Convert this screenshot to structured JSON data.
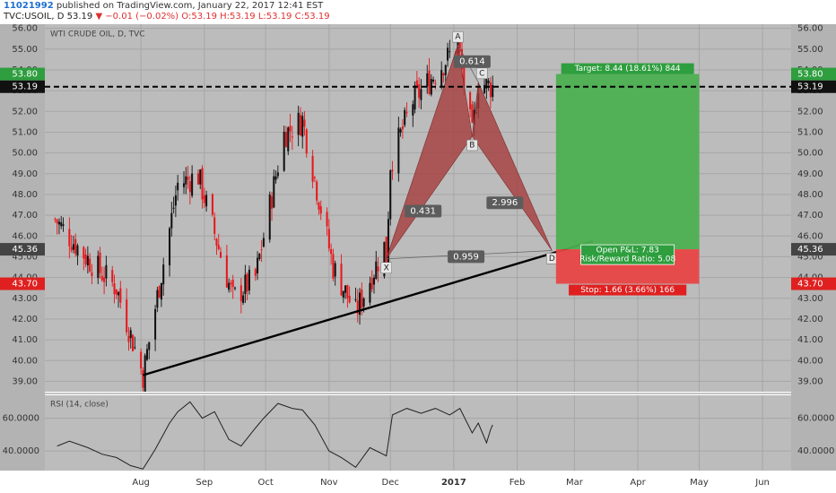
{
  "header": {
    "user": "11021992",
    "published_text": "published on TradingView.com, January 22, 2017 12:41 EST",
    "symbol": "TVC:USOIL, D",
    "price": "53.19",
    "change": "▼ −0.01 (−0.02%)",
    "ohlc": "O:53.19 H:53.19 L:53.19 C:53.19"
  },
  "colors": {
    "pane_bg": "#bcbcbc",
    "up_candle": "#111111",
    "down_candle": "#e8171b",
    "pattern_fill": "#a63a3a",
    "profit_zone": "#4caf50",
    "loss_zone": "#e84545",
    "trendline": "#000000"
  },
  "chart_data": [
    {
      "type": "candlestick",
      "instrument_title": "WTI CRUDE OIL, D, TVC",
      "y_ticks": [
        39,
        40,
        41,
        42,
        43,
        44,
        45,
        46,
        47,
        48,
        49,
        50,
        51,
        52,
        53,
        54,
        55,
        56
      ],
      "y_tick_labels": [
        "39.00",
        "40.00",
        "41.00",
        "42.00",
        "43.00",
        "44.00",
        "45.00",
        "46.00",
        "47.00",
        "48.00",
        "49.00",
        "50.00",
        "51.00",
        "52.00",
        "53.00",
        "54.00",
        "55.00",
        "56.00"
      ],
      "ylim": [
        38.5,
        56.2
      ],
      "x_tick_labels": [
        "Aug",
        "Sep",
        "Oct",
        "Nov",
        "Dec",
        "2017",
        "Feb",
        "Mar",
        "Apr",
        "May",
        "Jun"
      ],
      "x_tick_dates": [
        "2016-08-01",
        "2016-09-01",
        "2016-10-01",
        "2016-11-01",
        "2016-12-01",
        "2017-01-01",
        "2017-02-01",
        "2017-03-01",
        "2017-04-01",
        "2017-05-01",
        "2017-06-01"
      ],
      "xlim": [
        "2016-06-15",
        "2017-06-15"
      ],
      "grid": true,
      "price_tags": [
        {
          "label": "53.80",
          "value": 53.8,
          "color": "#2e9e3e"
        },
        {
          "label": "53.19",
          "value": 53.19,
          "color": "#111111"
        },
        {
          "label": "45.36",
          "value": 45.36,
          "color": "#444444"
        },
        {
          "label": "43.70",
          "value": 43.7,
          "color": "#e02020"
        }
      ],
      "current_price_line": 53.19,
      "key_prices": [
        {
          "date": "2016-06-20",
          "value": 46.8
        },
        {
          "date": "2016-07-05",
          "value": 45.0
        },
        {
          "date": "2016-07-20",
          "value": 43.5
        },
        {
          "date": "2016-08-02",
          "value": 39.3
        },
        {
          "date": "2016-08-19",
          "value": 48.5
        },
        {
          "date": "2016-08-29",
          "value": 48.9
        },
        {
          "date": "2016-09-15",
          "value": 43.0
        },
        {
          "date": "2016-09-26",
          "value": 44.0
        },
        {
          "date": "2016-10-10",
          "value": 50.9
        },
        {
          "date": "2016-10-19",
          "value": 51.6
        },
        {
          "date": "2016-11-03",
          "value": 44.5
        },
        {
          "date": "2016-11-14",
          "value": 42.3
        },
        {
          "date": "2016-11-28",
          "value": 45.5
        },
        {
          "date": "2016-11-29",
          "value": 44.9
        },
        {
          "date": "2016-12-01",
          "value": 49.5
        },
        {
          "date": "2016-12-12",
          "value": 52.5
        },
        {
          "date": "2017-01-03",
          "value": 55.2
        },
        {
          "date": "2017-01-10",
          "value": 50.8
        },
        {
          "date": "2017-01-13",
          "value": 53.4
        },
        {
          "date": "2017-01-20",
          "value": 53.19
        }
      ],
      "harmonic_pattern": {
        "points": [
          {
            "label": "X",
            "date": "2016-11-29",
            "value": 44.9
          },
          {
            "label": "A",
            "date": "2017-01-03",
            "value": 55.2
          },
          {
            "label": "B",
            "date": "2017-01-10",
            "value": 50.8
          },
          {
            "label": "C",
            "date": "2017-01-13",
            "value": 53.4
          },
          {
            "label": "D",
            "date": "2017-02-18",
            "value": 45.3
          }
        ],
        "ratios": [
          {
            "label": "0.614",
            "date": "2017-01-10",
            "value": 54.4
          },
          {
            "label": "0.431",
            "date": "2016-12-17",
            "value": 47.2
          },
          {
            "label": "2.996",
            "date": "2017-01-26",
            "value": 47.6
          },
          {
            "label": "0.959",
            "date": "2017-01-07",
            "value": 45.0
          }
        ]
      },
      "trendline": {
        "start": {
          "date": "2016-08-02",
          "value": 39.3
        },
        "end": {
          "date": "2017-03-10",
          "value": 45.75
        }
      },
      "position": {
        "entry": 45.36,
        "target": 53.8,
        "stop": 43.7,
        "start_date": "2017-02-20",
        "end_date": "2017-05-01",
        "target_label": "Target: 8.44 (18.61%) 844",
        "stop_label": "Stop: 1.66 (3.66%) 166",
        "pnl_label": "Open P&L: 7.83",
        "rr_label": "Risk/Reward Ratio: 5.08"
      }
    },
    {
      "type": "line",
      "title": "RSI (14, close)",
      "y_ticks": [
        40,
        60
      ],
      "y_tick_labels": [
        "40.0000",
        "60.0000"
      ],
      "ylim": [
        28,
        74
      ],
      "series": [
        {
          "points": [
            [
              "2016-06-21",
              43
            ],
            [
              "2016-06-27",
              46
            ],
            [
              "2016-07-06",
              42
            ],
            [
              "2016-07-13",
              38
            ],
            [
              "2016-07-20",
              36
            ],
            [
              "2016-07-27",
              31
            ],
            [
              "2016-08-02",
              29
            ],
            [
              "2016-08-08",
              41
            ],
            [
              "2016-08-15",
              57
            ],
            [
              "2016-08-19",
              64
            ],
            [
              "2016-08-25",
              70
            ],
            [
              "2016-08-31",
              60
            ],
            [
              "2016-09-06",
              64
            ],
            [
              "2016-09-13",
              47
            ],
            [
              "2016-09-19",
              43
            ],
            [
              "2016-09-26",
              54
            ],
            [
              "2016-09-30",
              60
            ],
            [
              "2016-10-07",
              69
            ],
            [
              "2016-10-14",
              66
            ],
            [
              "2016-10-19",
              65
            ],
            [
              "2016-10-25",
              56
            ],
            [
              "2016-11-01",
              40
            ],
            [
              "2016-11-07",
              36
            ],
            [
              "2016-11-14",
              30
            ],
            [
              "2016-11-21",
              42
            ],
            [
              "2016-11-29",
              37
            ],
            [
              "2016-12-02",
              62
            ],
            [
              "2016-12-09",
              66
            ],
            [
              "2016-12-16",
              63
            ],
            [
              "2016-12-23",
              66
            ],
            [
              "2016-12-30",
              62
            ],
            [
              "2017-01-04",
              66
            ],
            [
              "2017-01-10",
              51
            ],
            [
              "2017-01-13",
              57
            ],
            [
              "2017-01-17",
              45
            ],
            [
              "2017-01-19",
              53
            ],
            [
              "2017-01-20",
              56
            ]
          ]
        }
      ]
    }
  ]
}
